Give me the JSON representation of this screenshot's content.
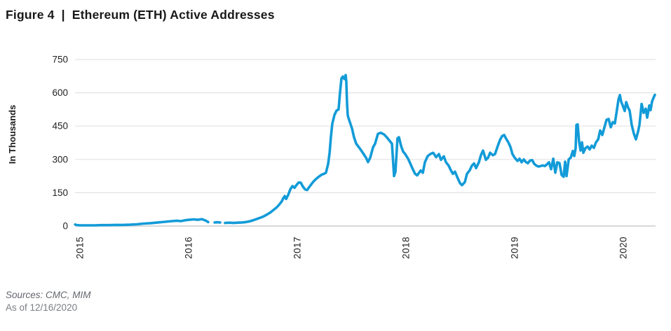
{
  "header": {
    "figure_label": "Figure 4",
    "separator": "|",
    "title": "Ethereum (ETH) Active Addresses"
  },
  "footer": {
    "sources": "Sources: CMC, MIM",
    "as_of": "As of 12/16/2020"
  },
  "chart_data": {
    "type": "line",
    "title": "Ethereum (ETH) Active Addresses",
    "xlabel": "",
    "ylabel": "In Thousands",
    "ylim": [
      0,
      750
    ],
    "xlim": [
      2014.98,
      2020.32
    ],
    "yticks": [
      0,
      150,
      300,
      450,
      600,
      750
    ],
    "xticks": [
      2015,
      2016,
      2017,
      2018,
      2019,
      2020
    ],
    "grid": "horizontal",
    "legend": "none",
    "line_color": "#129bd8",
    "gridline_color": "#e3e3e3",
    "baseline_color": "#c9cbcd",
    "tick_text_color": "#232326",
    "units": "thousands of active addresses",
    "note": "x values are decimal years read from the axis; null entries are gaps (missing data) in early 2016",
    "series": [
      {
        "name": "ETH Active Addresses (thousands)",
        "points": [
          [
            2014.981,
            7
          ],
          [
            2015.0,
            4
          ],
          [
            2015.032,
            3
          ],
          [
            2015.097,
            3
          ],
          [
            2015.161,
            3
          ],
          [
            2015.226,
            4
          ],
          [
            2015.29,
            4
          ],
          [
            2015.355,
            5
          ],
          [
            2015.419,
            5
          ],
          [
            2015.484,
            6
          ],
          [
            2015.548,
            8
          ],
          [
            2015.613,
            11
          ],
          [
            2015.677,
            13
          ],
          [
            2015.742,
            16
          ],
          [
            2015.806,
            19
          ],
          [
            2015.871,
            22
          ],
          [
            2015.916,
            24
          ],
          [
            2015.955,
            22
          ],
          [
            2015.994,
            26
          ],
          [
            2016.032,
            28
          ],
          [
            2016.071,
            30
          ],
          [
            2016.11,
            28
          ],
          [
            2016.148,
            31
          ],
          [
            2016.181,
            25
          ],
          [
            2016.206,
            18
          ],
          null,
          [
            2016.265,
            16
          ],
          [
            2016.29,
            17
          ],
          [
            2016.316,
            16
          ],
          null,
          [
            2016.361,
            14
          ],
          [
            2016.4,
            15
          ],
          [
            2016.439,
            14
          ],
          [
            2016.477,
            15
          ],
          [
            2016.516,
            16
          ],
          [
            2016.555,
            18
          ],
          [
            2016.594,
            22
          ],
          [
            2016.632,
            28
          ],
          [
            2016.671,
            35
          ],
          [
            2016.71,
            42
          ],
          [
            2016.748,
            52
          ],
          [
            2016.781,
            62
          ],
          [
            2016.813,
            75
          ],
          [
            2016.839,
            85
          ],
          [
            2016.865,
            100
          ],
          [
            2016.884,
            112
          ],
          [
            2016.897,
            125
          ],
          [
            2016.91,
            135
          ],
          [
            2016.923,
            122
          ],
          [
            2016.942,
            140
          ],
          [
            2016.961,
            165
          ],
          [
            2016.981,
            180
          ],
          [
            2017.0,
            172
          ],
          [
            2017.019,
            185
          ],
          [
            2017.039,
            196
          ],
          [
            2017.058,
            195
          ],
          [
            2017.077,
            178
          ],
          [
            2017.097,
            165
          ],
          [
            2017.116,
            162
          ],
          [
            2017.135,
            175
          ],
          [
            2017.155,
            188
          ],
          [
            2017.174,
            200
          ],
          [
            2017.194,
            210
          ],
          [
            2017.213,
            218
          ],
          [
            2017.232,
            225
          ],
          [
            2017.252,
            232
          ],
          [
            2017.271,
            235
          ],
          [
            2017.29,
            240
          ],
          [
            2017.31,
            280
          ],
          [
            2017.323,
            330
          ],
          [
            2017.335,
            400
          ],
          [
            2017.348,
            460
          ],
          [
            2017.368,
            500
          ],
          [
            2017.387,
            520
          ],
          [
            2017.406,
            525
          ],
          [
            2017.419,
            600
          ],
          [
            2017.432,
            665
          ],
          [
            2017.445,
            673
          ],
          [
            2017.458,
            662
          ],
          [
            2017.471,
            680
          ],
          [
            2017.477,
            650
          ],
          [
            2017.484,
            550
          ],
          [
            2017.49,
            498
          ],
          [
            2017.503,
            477
          ],
          [
            2017.529,
            440
          ],
          [
            2017.548,
            400
          ],
          [
            2017.568,
            371
          ],
          [
            2017.6,
            350
          ],
          [
            2017.632,
            327
          ],
          [
            2017.658,
            308
          ],
          [
            2017.677,
            288
          ],
          [
            2017.697,
            308
          ],
          [
            2017.723,
            355
          ],
          [
            2017.742,
            371
          ],
          [
            2017.768,
            415
          ],
          [
            2017.794,
            420
          ],
          [
            2017.826,
            412
          ],
          [
            2017.852,
            398
          ],
          [
            2017.877,
            383
          ],
          [
            2017.897,
            371
          ],
          [
            2017.916,
            225
          ],
          [
            2017.929,
            245
          ],
          [
            2017.948,
            395
          ],
          [
            2017.961,
            400
          ],
          [
            2017.981,
            360
          ],
          [
            2018.0,
            335
          ],
          [
            2018.019,
            324
          ],
          [
            2018.045,
            303
          ],
          [
            2018.065,
            282
          ],
          [
            2018.084,
            261
          ],
          [
            2018.11,
            235
          ],
          [
            2018.129,
            228
          ],
          [
            2018.161,
            250
          ],
          [
            2018.181,
            240
          ],
          [
            2018.2,
            287
          ],
          [
            2018.226,
            315
          ],
          [
            2018.252,
            325
          ],
          [
            2018.277,
            330
          ],
          [
            2018.303,
            310
          ],
          [
            2018.329,
            324
          ],
          [
            2018.348,
            298
          ],
          [
            2018.374,
            314
          ],
          [
            2018.394,
            287
          ],
          [
            2018.419,
            272
          ],
          [
            2018.439,
            251
          ],
          [
            2018.458,
            235
          ],
          [
            2018.477,
            245
          ],
          [
            2018.503,
            214
          ],
          [
            2018.523,
            193
          ],
          [
            2018.542,
            184
          ],
          [
            2018.568,
            198
          ],
          [
            2018.587,
            235
          ],
          [
            2018.613,
            251
          ],
          [
            2018.632,
            272
          ],
          [
            2018.652,
            282
          ],
          [
            2018.671,
            261
          ],
          [
            2018.697,
            287
          ],
          [
            2018.716,
            320
          ],
          [
            2018.735,
            340
          ],
          [
            2018.761,
            298
          ],
          [
            2018.781,
            308
          ],
          [
            2018.8,
            330
          ],
          [
            2018.826,
            319
          ],
          [
            2018.845,
            324
          ],
          [
            2018.871,
            361
          ],
          [
            2018.89,
            387
          ],
          [
            2018.91,
            405
          ],
          [
            2018.929,
            410
          ],
          [
            2018.948,
            393
          ],
          [
            2018.968,
            377
          ],
          [
            2018.987,
            356
          ],
          [
            2019.006,
            324
          ],
          [
            2019.026,
            308
          ],
          [
            2019.052,
            293
          ],
          [
            2019.071,
            303
          ],
          [
            2019.09,
            287
          ],
          [
            2019.11,
            300
          ],
          [
            2019.129,
            288
          ],
          [
            2019.148,
            283
          ],
          [
            2019.168,
            295
          ],
          [
            2019.187,
            297
          ],
          [
            2019.206,
            280
          ],
          [
            2019.226,
            272
          ],
          [
            2019.245,
            268
          ],
          [
            2019.265,
            270
          ],
          [
            2019.284,
            273
          ],
          [
            2019.303,
            270
          ],
          [
            2019.323,
            278
          ],
          [
            2019.342,
            287
          ],
          [
            2019.361,
            256
          ],
          [
            2019.381,
            303
          ],
          [
            2019.4,
            240
          ],
          [
            2019.419,
            287
          ],
          [
            2019.439,
            283
          ],
          [
            2019.458,
            230
          ],
          [
            2019.477,
            222
          ],
          [
            2019.49,
            290
          ],
          [
            2019.503,
            225
          ],
          [
            2019.523,
            300
          ],
          [
            2019.542,
            308
          ],
          [
            2019.561,
            338
          ],
          [
            2019.574,
            315
          ],
          [
            2019.587,
            350
          ],
          [
            2019.594,
            455
          ],
          [
            2019.606,
            458
          ],
          [
            2019.619,
            380
          ],
          [
            2019.632,
            340
          ],
          [
            2019.645,
            377
          ],
          [
            2019.658,
            330
          ],
          [
            2019.677,
            350
          ],
          [
            2019.697,
            358
          ],
          [
            2019.716,
            345
          ],
          [
            2019.735,
            362
          ],
          [
            2019.755,
            352
          ],
          [
            2019.774,
            377
          ],
          [
            2019.794,
            390
          ],
          [
            2019.813,
            430
          ],
          [
            2019.832,
            410
          ],
          [
            2019.852,
            445
          ],
          [
            2019.871,
            478
          ],
          [
            2019.89,
            482
          ],
          [
            2019.91,
            445
          ],
          [
            2019.929,
            468
          ],
          [
            2019.948,
            462
          ],
          [
            2019.968,
            525
          ],
          [
            2019.981,
            570
          ],
          [
            2019.994,
            590
          ],
          [
            2020.006,
            560
          ],
          [
            2020.019,
            545
          ],
          [
            2020.039,
            518
          ],
          [
            2020.052,
            558
          ],
          [
            2020.071,
            532
          ],
          [
            2020.084,
            520
          ],
          [
            2020.103,
            455
          ],
          [
            2020.123,
            415
          ],
          [
            2020.142,
            390
          ],
          [
            2020.161,
            425
          ],
          [
            2020.174,
            455
          ],
          [
            2020.194,
            550
          ],
          [
            2020.213,
            510
          ],
          [
            2020.232,
            528
          ],
          [
            2020.245,
            488
          ],
          [
            2020.265,
            543
          ],
          [
            2020.277,
            522
          ],
          [
            2020.29,
            560
          ],
          [
            2020.303,
            577
          ],
          [
            2020.316,
            591
          ]
        ]
      }
    ]
  }
}
